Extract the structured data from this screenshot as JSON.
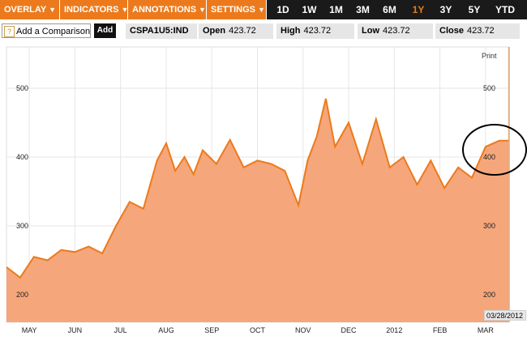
{
  "toolbar": {
    "menus": [
      {
        "label": "OVERLAY",
        "caret": "▼"
      },
      {
        "label": "INDICATORS",
        "caret": "▼"
      },
      {
        "label": "ANNOTATIONS",
        "caret": "▼"
      },
      {
        "label": "SETTINGS",
        "caret": "▼"
      }
    ],
    "ranges": [
      "1D",
      "1W",
      "1M",
      "3M",
      "6M",
      "1Y",
      "3Y",
      "5Y",
      "YTD"
    ],
    "active_range": "1Y",
    "accent_color": "#ec7a1c"
  },
  "comparison": {
    "icon": "?",
    "label": "Add a Comparison",
    "add_label": "Add"
  },
  "quote": {
    "ticker": "CSPA1U5:IND",
    "open_label": "Open",
    "open_value": "423.72",
    "high_label": "High",
    "high_value": "423.72",
    "low_label": "Low",
    "low_value": "423.72",
    "close_label": "Close",
    "close_value": "423.72"
  },
  "print_label": "Print",
  "last_date": "03/28/2012",
  "chart_data": {
    "type": "area",
    "fill_color": "#f5a67b",
    "line_color": "#ec7a1c",
    "y_ticks": [
      200,
      300,
      400,
      500
    ],
    "ylim": [
      160,
      560
    ],
    "x_ticks": [
      "MAY",
      "JUN",
      "JUL",
      "AUG",
      "SEP",
      "OCT",
      "NOV",
      "DEC",
      "2012",
      "FEB",
      "MAR"
    ],
    "x_tick_positions": [
      0.5,
      1.5,
      2.5,
      3.5,
      4.5,
      5.5,
      6.5,
      7.5,
      8.5,
      9.5,
      10.5
    ],
    "grid": true,
    "annotation": "circle around latest values",
    "series": [
      {
        "name": "",
        "x": [
          0.0,
          0.3,
          0.6,
          0.9,
          1.2,
          1.5,
          1.8,
          2.1,
          2.4,
          2.7,
          3.0,
          3.3,
          3.5,
          3.7,
          3.9,
          4.1,
          4.3,
          4.6,
          4.9,
          5.2,
          5.5,
          5.8,
          6.1,
          6.4,
          6.6,
          6.8,
          7.0,
          7.2,
          7.5,
          7.8,
          8.1,
          8.4,
          8.7,
          9.0,
          9.3,
          9.6,
          9.9,
          10.2,
          10.5,
          10.8,
          11.0
        ],
        "y": [
          240,
          225,
          255,
          250,
          265,
          262,
          270,
          260,
          300,
          335,
          325,
          395,
          420,
          380,
          400,
          375,
          410,
          390,
          425,
          385,
          395,
          390,
          380,
          330,
          395,
          430,
          485,
          415,
          450,
          390,
          455,
          385,
          400,
          360,
          395,
          355,
          385,
          370,
          415,
          423.72,
          423.72
        ]
      }
    ]
  }
}
